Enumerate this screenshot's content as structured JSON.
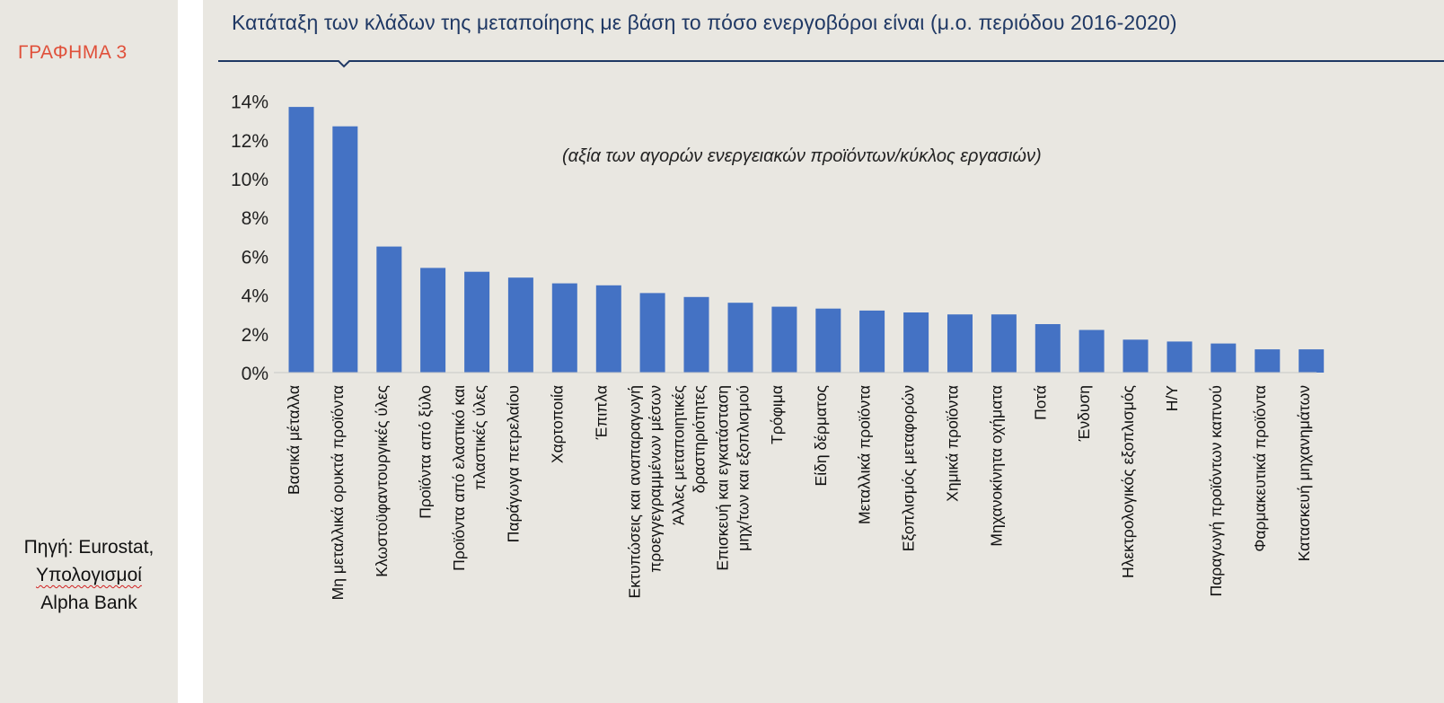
{
  "sidebar": {
    "chart_number": "ΓΡΑΦΗΜΑ 3",
    "source_line1": "Πηγή: Eurostat,",
    "source_line2": "Υπολογισμοί",
    "source_line3": "Alpha Bank"
  },
  "colors": {
    "bar": "#4472c4",
    "title": "#1f3864",
    "label_red": "#e0503a",
    "panel_bg": "#e9e7e1"
  },
  "chart_data": {
    "type": "bar",
    "title": "Κατάταξη των κλάδων της μεταποίησης με βάση το πόσο ενεργοβόροι είναι (μ.ο. περιόδου 2016-2020)",
    "annotation": "(αξία των αγορών ενεργειακών προϊόντων/κύκλος εργασιών)",
    "categories": [
      [
        "Βασικά μέταλλα"
      ],
      [
        "Μη μεταλλικά ορυκτά προϊόντα"
      ],
      [
        "Κλωστοϋφαντουργικές ύλες"
      ],
      [
        "Προϊόντα από ξύλο"
      ],
      [
        "Προϊόντα από ελαστικό και",
        "πλαστικές ύλες"
      ],
      [
        "Παράγωγα πετρελαίου"
      ],
      [
        "Χαρτοποιία"
      ],
      [
        "Έπιπλα"
      ],
      [
        "Εκτυπώσεις και αναπαραγωγή",
        "προεγγεγραμμένων μέσων"
      ],
      [
        "Άλλες μεταποιητικές",
        "δραστηριότητες"
      ],
      [
        "Επισκευή και εγκατάσταση",
        "μηχ/των και εξοπλισμού"
      ],
      [
        "Τρόφιμα"
      ],
      [
        "Είδη δέρματος"
      ],
      [
        "Μεταλλικά προϊόντα"
      ],
      [
        "Εξοπλισμός μεταφορών"
      ],
      [
        "Χημικά προϊόντα"
      ],
      [
        "Μηχανοκίνητα οχήματα"
      ],
      [
        "Ποτά"
      ],
      [
        "Ένδυση"
      ],
      [
        "Ηλεκτρολογικός εξοπλισμός"
      ],
      [
        "Η/Υ"
      ],
      [
        "Παραγωγή προϊόντων καπνού"
      ],
      [
        "Φαρμακευτικά προϊόντα"
      ],
      [
        "Κατασκευή μηχανημάτων"
      ]
    ],
    "values": [
      13.7,
      12.7,
      6.5,
      5.4,
      5.2,
      4.9,
      4.6,
      4.5,
      4.1,
      3.9,
      3.6,
      3.4,
      3.3,
      3.2,
      3.1,
      3.0,
      3.0,
      2.5,
      2.2,
      1.7,
      1.6,
      1.5,
      1.2,
      1.2
    ],
    "y_ticks": [
      "0%",
      "2%",
      "4%",
      "6%",
      "8%",
      "10%",
      "12%",
      "14%"
    ],
    "ylim": [
      0,
      14
    ],
    "ylabel": "",
    "xlabel": "",
    "grid": false,
    "legend": "none"
  }
}
